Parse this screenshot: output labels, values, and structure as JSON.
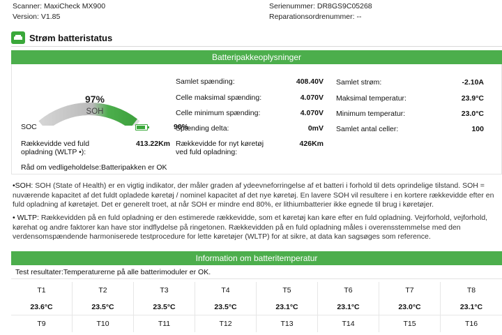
{
  "header": {
    "scanner": "Scanner: MaxiCheck MX900",
    "version": "Version: V1.85",
    "serial": "Serienummer: DR8GS9C05268",
    "repair_order": "Reparationsordrenummer: --"
  },
  "page_title": "Strøm batteristatus",
  "pack_section": {
    "title": "Batteripakkeoplysninger",
    "soh_percent": "97%",
    "soh_label": "SOH",
    "soh_value": 97,
    "soc_label": "SOC",
    "soc_value": "90%",
    "range_label": "Rækkevidde ved fuld opladning (WLTP •):",
    "range_value": "413.22Km",
    "advice": "Råd om vedligeholdelse:Batteripakken er OK",
    "column2": [
      {
        "label": "Samlet spænding:",
        "value": "408.40V"
      },
      {
        "label": "Celle maksimal spænding:",
        "value": "4.070V"
      },
      {
        "label": "Celle minimum spænding:",
        "value": "4.070V"
      },
      {
        "label": "Spænding delta:",
        "value": "0mV"
      },
      {
        "label": "Rækkevidde for nyt køretøj ved fuld opladning:",
        "value": "426Km"
      }
    ],
    "column3": [
      {
        "label": "Samlet strøm:",
        "value": "-2.10A"
      },
      {
        "label": "Maksimal temperatur:",
        "value": "23.9°C"
      },
      {
        "label": "Minimum temperatur:",
        "value": "23.0°C"
      },
      {
        "label": "Samlet antal celler:",
        "value": "100"
      }
    ]
  },
  "notes": {
    "soh_lead": "•SOH:",
    "soh_text": " SOH (State of Health) er en vigtig indikator, der måler graden af ydeevneforringelse af et batteri i forhold til dets oprindelige tilstand. SOH = nuværende kapacitet af det fuldt opladede køretøj / nominel kapacitet af det nye køretøj. En lavere SOH vil resultere i en kortere rækkevidde efter en fuld opladning af køretøjet. Det er generelt troet, at når SOH er mindre end 80%, er lithiumbatterier ikke egnede til brug i køretøjer.",
    "wltp_lead": "• WLTP:",
    "wltp_text": " Rækkevidden på en fuld opladning er den estimerede rækkevidde, som et køretøj kan køre efter en fuld opladning. Vejrforhold, vejforhold, kørehat og andre faktorer kan have stor indflydelse på ringetonen. Rækkevidden på en fuld opladning måles i overensstemmelse med den verdensomspændende harmoniserede testprocedure for lette køretøjer (WLTP) for at sikre, at data kan sagsøges som reference."
  },
  "temp_section": {
    "title": "Information om batteritemperatur",
    "result": "Test resultater:Temperaturerne på alle batterimoduler er OK.",
    "modules_row1": [
      "T1",
      "T2",
      "T3",
      "T4",
      "T5",
      "T6",
      "T7",
      "T8"
    ],
    "values_row1": [
      "23.6°C",
      "23.5°C",
      "23.5°C",
      "23.5°C",
      "23.1°C",
      "23.1°C",
      "23.0°C",
      "23.1°C"
    ],
    "modules_row2": [
      "T9",
      "T10",
      "T11",
      "T12",
      "T13",
      "T14",
      "T15",
      "T16"
    ]
  },
  "colors": {
    "accent_green": "#4cae4c",
    "gauge_track": "#e0e0e0",
    "gauge_gradient_start": "#d4d4d4"
  }
}
